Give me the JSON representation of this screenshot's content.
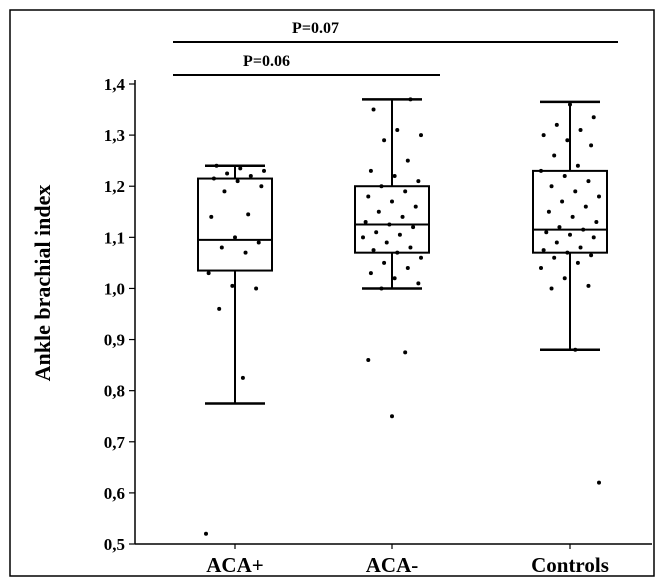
{
  "chart_data": {
    "type": "box",
    "xlabel": "",
    "ylabel": "Ankle brachial index",
    "ylim": [
      0.5,
      1.4
    ],
    "yticks": [
      "0,5",
      "0,6",
      "0,7",
      "0,8",
      "0,9",
      "1,0",
      "1,1",
      "1,2",
      "1,3",
      "1,4"
    ],
    "yticks_values": [
      0.5,
      0.6,
      0.7,
      0.8,
      0.9,
      1.0,
      1.1,
      1.2,
      1.3,
      1.4
    ],
    "categories": [
      "ACA+",
      "ACA-",
      "Controls"
    ],
    "boxes": [
      {
        "category": "ACA+",
        "whisker_low": 0.775,
        "q1": 1.035,
        "median": 1.095,
        "q3": 1.215,
        "whisker_high": 1.24
      },
      {
        "category": "ACA-",
        "whisker_low": 1.0,
        "q1": 1.07,
        "median": 1.125,
        "q3": 1.2,
        "whisker_high": 1.37
      },
      {
        "category": "Controls",
        "whisker_low": 0.88,
        "q1": 1.07,
        "median": 1.115,
        "q3": 1.23,
        "whisker_high": 1.365
      }
    ],
    "points": [
      {
        "category": "ACA+",
        "values": [
          0.52,
          0.825,
          0.96,
          1.0,
          1.005,
          1.03,
          1.07,
          1.08,
          1.09,
          1.1,
          1.14,
          1.145,
          1.19,
          1.2,
          1.21,
          1.215,
          1.22,
          1.225,
          1.23,
          1.235,
          1.24
        ]
      },
      {
        "category": "ACA-",
        "values": [
          0.75,
          0.86,
          0.875,
          1.0,
          1.01,
          1.02,
          1.03,
          1.04,
          1.05,
          1.06,
          1.07,
          1.075,
          1.08,
          1.09,
          1.1,
          1.105,
          1.11,
          1.12,
          1.125,
          1.13,
          1.14,
          1.15,
          1.16,
          1.17,
          1.18,
          1.19,
          1.2,
          1.21,
          1.22,
          1.23,
          1.25,
          1.29,
          1.3,
          1.31,
          1.35,
          1.37
        ]
      },
      {
        "category": "Controls",
        "values": [
          0.62,
          0.88,
          1.0,
          1.005,
          1.02,
          1.04,
          1.05,
          1.06,
          1.065,
          1.07,
          1.075,
          1.08,
          1.09,
          1.1,
          1.105,
          1.11,
          1.115,
          1.12,
          1.13,
          1.14,
          1.15,
          1.16,
          1.17,
          1.18,
          1.19,
          1.2,
          1.21,
          1.22,
          1.23,
          1.24,
          1.26,
          1.28,
          1.29,
          1.3,
          1.31,
          1.32,
          1.335,
          1.36
        ]
      }
    ],
    "annotations": [
      {
        "text": "P=0.07",
        "from": "ACA+",
        "to": "Controls"
      },
      {
        "text": "P=0.06",
        "from": "ACA+",
        "to": "ACA-"
      }
    ],
    "grid": false
  }
}
